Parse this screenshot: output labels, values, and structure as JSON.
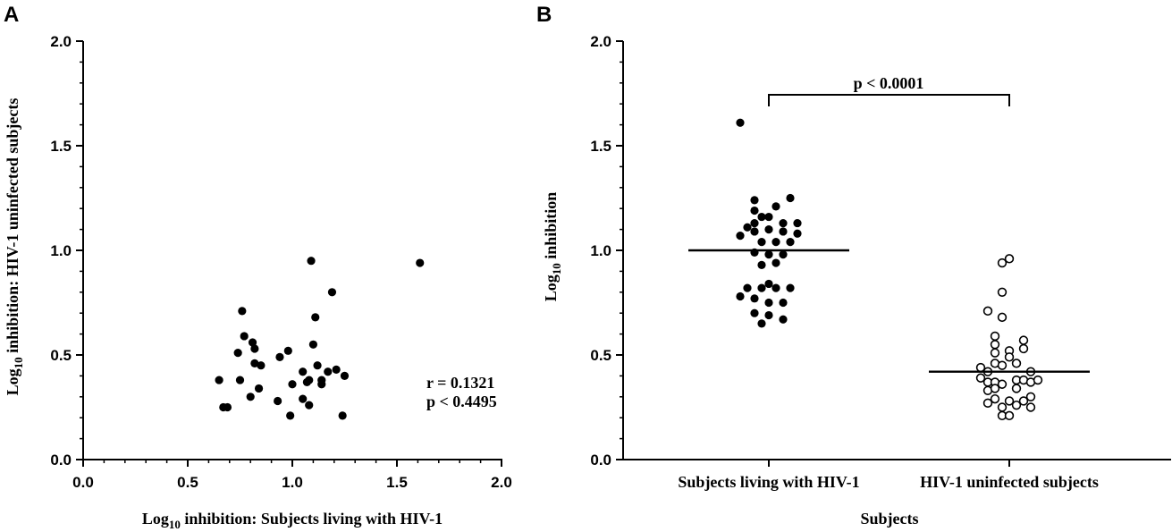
{
  "chart_data": [
    {
      "panel": "A",
      "type": "scatter",
      "xlabel_prefix": "Log",
      "xlabel_subscript": "10",
      "xlabel_rest": " inhibition: Subjects living with HIV-1",
      "ylabel_prefix": "Log",
      "ylabel_subscript": "10",
      "ylabel_rest": " inhibition: HIV-1 uninfected subjects",
      "xlim": [
        0,
        2
      ],
      "ylim": [
        0,
        2
      ],
      "xticks": [
        "0.0",
        "0.5",
        "1.0",
        "1.5",
        "2.0"
      ],
      "yticks": [
        "0.0",
        "0.5",
        "1.0",
        "1.5",
        "2.0"
      ],
      "annotations": [
        "r = 0.1321",
        "p < 0.4495"
      ],
      "points": [
        [
          0.65,
          0.38
        ],
        [
          0.67,
          0.25
        ],
        [
          0.69,
          0.25
        ],
        [
          0.74,
          0.51
        ],
        [
          0.75,
          0.38
        ],
        [
          0.76,
          0.71
        ],
        [
          0.77,
          0.59
        ],
        [
          0.8,
          0.3
        ],
        [
          0.81,
          0.56
        ],
        [
          0.82,
          0.46
        ],
        [
          0.82,
          0.53
        ],
        [
          0.84,
          0.34
        ],
        [
          0.85,
          0.45
        ],
        [
          0.93,
          0.28
        ],
        [
          0.94,
          0.49
        ],
        [
          0.98,
          0.52
        ],
        [
          0.99,
          0.21
        ],
        [
          1.0,
          0.36
        ],
        [
          1.05,
          0.42
        ],
        [
          1.05,
          0.29
        ],
        [
          1.07,
          0.37
        ],
        [
          1.08,
          0.38
        ],
        [
          1.08,
          0.26
        ],
        [
          1.09,
          0.95
        ],
        [
          1.1,
          0.55
        ],
        [
          1.11,
          0.68
        ],
        [
          1.12,
          0.45
        ],
        [
          1.14,
          0.36
        ],
        [
          1.14,
          0.38
        ],
        [
          1.17,
          0.42
        ],
        [
          1.19,
          0.8
        ],
        [
          1.21,
          0.43
        ],
        [
          1.24,
          0.21
        ],
        [
          1.25,
          0.4
        ],
        [
          1.61,
          0.94
        ]
      ]
    },
    {
      "panel": "B",
      "type": "scatter",
      "xlabel": "Subjects",
      "ylabel_prefix": "Log",
      "ylabel_subscript": "10",
      "ylabel_rest": " inhibition",
      "ylim": [
        0,
        2
      ],
      "yticks": [
        "0.0",
        "0.5",
        "1.0",
        "1.5",
        "2.0"
      ],
      "categories": [
        "Subjects living with HIV-1",
        "HIV-1 uninfected subjects"
      ],
      "significance_label": "p < 0.0001",
      "series": [
        {
          "name": "Subjects living with HIV-1",
          "marker": "filled",
          "median": 1.0,
          "points": [
            [
              -4,
              1.61
            ],
            [
              -2,
              1.24
            ],
            [
              3,
              1.25
            ],
            [
              -2,
              1.19
            ],
            [
              1,
              1.21
            ],
            [
              -1,
              1.16
            ],
            [
              -3,
              1.11
            ],
            [
              -2,
              1.13
            ],
            [
              0,
              1.16
            ],
            [
              2,
              1.13
            ],
            [
              4,
              1.13
            ],
            [
              -4,
              1.07
            ],
            [
              -2,
              1.09
            ],
            [
              0,
              1.1
            ],
            [
              2,
              1.09
            ],
            [
              4,
              1.08
            ],
            [
              -1,
              1.04
            ],
            [
              1,
              1.04
            ],
            [
              3,
              1.04
            ],
            [
              -2,
              0.99
            ],
            [
              0,
              0.98
            ],
            [
              2,
              0.98
            ],
            [
              -1,
              0.93
            ],
            [
              1,
              0.94
            ],
            [
              -3,
              0.82
            ],
            [
              -1,
              0.82
            ],
            [
              0,
              0.84
            ],
            [
              1,
              0.82
            ],
            [
              3,
              0.82
            ],
            [
              -4,
              0.78
            ],
            [
              -2,
              0.77
            ],
            [
              0,
              0.75
            ],
            [
              2,
              0.75
            ],
            [
              -2,
              0.7
            ],
            [
              0,
              0.69
            ],
            [
              2,
              0.67
            ],
            [
              -1,
              0.65
            ]
          ]
        },
        {
          "name": "HIV-1 uninfected subjects",
          "marker": "open",
          "median": 0.42,
          "points": [
            [
              0,
              0.96
            ],
            [
              -1,
              0.94
            ],
            [
              -1,
              0.8
            ],
            [
              -3,
              0.71
            ],
            [
              -1,
              0.68
            ],
            [
              -2,
              0.59
            ],
            [
              2,
              0.57
            ],
            [
              -2,
              0.55
            ],
            [
              -2,
              0.51
            ],
            [
              0,
              0.52
            ],
            [
              -2,
              0.46
            ],
            [
              0,
              0.49
            ],
            [
              2,
              0.53
            ],
            [
              -4,
              0.44
            ],
            [
              -3,
              0.42
            ],
            [
              -1,
              0.45
            ],
            [
              1,
              0.46
            ],
            [
              3,
              0.42
            ],
            [
              -4,
              0.39
            ],
            [
              -3,
              0.37
            ],
            [
              -2,
              0.37
            ],
            [
              -1,
              0.36
            ],
            [
              1,
              0.38
            ],
            [
              2,
              0.38
            ],
            [
              3,
              0.37
            ],
            [
              4,
              0.38
            ],
            [
              -3,
              0.33
            ],
            [
              -2,
              0.34
            ],
            [
              1,
              0.34
            ],
            [
              3,
              0.3
            ],
            [
              -2,
              0.29
            ],
            [
              0,
              0.28
            ],
            [
              2,
              0.28
            ],
            [
              -3,
              0.27
            ],
            [
              -1,
              0.25
            ],
            [
              1,
              0.26
            ],
            [
              3,
              0.25
            ],
            [
              -1,
              0.21
            ],
            [
              0,
              0.21
            ]
          ]
        }
      ]
    }
  ]
}
